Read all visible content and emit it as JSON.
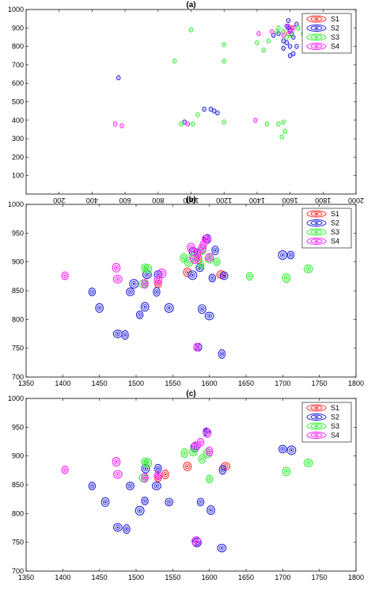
{
  "colors": {
    "S1": "#ff2a2a",
    "S2": "#2222dd",
    "S3": "#33ee33",
    "S4": "#ff22ff"
  },
  "chart_data": [
    {
      "type": "scatter",
      "title": "(a)",
      "xlim": [
        0,
        2000
      ],
      "ylim": [
        0,
        1000
      ],
      "x_ticks": [
        "200",
        "400",
        "600",
        "800",
        "1000",
        "1200",
        "1400",
        "1600",
        "1800",
        "2000"
      ],
      "y_ticks": [
        "100",
        "200",
        "300",
        "400",
        "500",
        "600",
        "700",
        "800",
        "900",
        "1000"
      ],
      "legend": [
        "S1",
        "S2",
        "S3",
        "S4"
      ],
      "legend_position": "top-right",
      "series": [
        {
          "name": "S1",
          "points": [
            [
              1610,
              900
            ],
            [
              1590,
              870
            ],
            [
              1560,
              880
            ]
          ]
        },
        {
          "name": "S2",
          "points": [
            [
              560,
              630
            ],
            [
              1080,
              460
            ],
            [
              1120,
              460
            ],
            [
              1140,
              450
            ],
            [
              1160,
              440
            ],
            [
              960,
              390
            ],
            [
              1590,
              900
            ],
            [
              1610,
              870
            ],
            [
              1620,
              850
            ],
            [
              1580,
              820
            ],
            [
              1600,
              800
            ],
            [
              1560,
              790
            ],
            [
              1620,
              760
            ],
            [
              1640,
              920
            ],
            [
              1590,
              940
            ],
            [
              1530,
              870
            ],
            [
              1560,
              830
            ],
            [
              1600,
              890
            ],
            [
              1640,
              800
            ],
            [
              1600,
              750
            ],
            [
              1580,
              910
            ],
            [
              1500,
              860
            ]
          ]
        },
        {
          "name": "S3",
          "points": [
            [
              1000,
              890
            ],
            [
              1200,
              810
            ],
            [
              1200,
              720
            ],
            [
              900,
              720
            ],
            [
              1200,
              390
            ],
            [
              1460,
              380
            ],
            [
              1530,
              380
            ],
            [
              1560,
              390
            ],
            [
              1570,
              340
            ],
            [
              1550,
              310
            ],
            [
              1040,
              430
            ],
            [
              940,
              380
            ],
            [
              1010,
              380
            ],
            [
              1530,
              900
            ],
            [
              1560,
              880
            ],
            [
              1610,
              860
            ],
            [
              1650,
              900
            ],
            [
              1520,
              880
            ],
            [
              1440,
              780
            ],
            [
              1470,
              830
            ],
            [
              1580,
              850
            ],
            [
              1680,
              870
            ],
            [
              1400,
              820
            ]
          ]
        },
        {
          "name": "S4",
          "points": [
            [
              540,
              380
            ],
            [
              580,
              370
            ],
            [
              980,
              380
            ],
            [
              1390,
              400
            ],
            [
              1410,
              870
            ],
            [
              1590,
              910
            ],
            [
              1490,
              880
            ],
            [
              1560,
              860
            ],
            [
              1620,
              900
            ],
            [
              1600,
              880
            ]
          ]
        }
      ]
    },
    {
      "type": "scatter",
      "title": "(b)",
      "xlim": [
        1350,
        1800
      ],
      "ylim": [
        700,
        1000
      ],
      "x_ticks": [
        "1350",
        "1400",
        "1450",
        "1500",
        "1550",
        "1600",
        "1650",
        "1700",
        "1750",
        "1800"
      ],
      "y_ticks": [
        "700",
        "750",
        "800",
        "850",
        "900",
        "950",
        "1000"
      ],
      "legend": [
        "S1",
        "S2",
        "S3",
        "S4"
      ],
      "legend_position": "top-right",
      "series": [
        {
          "name": "S1",
          "points": [
            [
              1530,
              862
            ],
            [
              1570,
              882
            ],
            [
              1616,
              878
            ],
            [
              1585,
              905
            ]
          ]
        },
        {
          "name": "S2",
          "points": [
            [
              1440,
              848
            ],
            [
              1450,
              820
            ],
            [
              1475,
              775
            ],
            [
              1485,
              773
            ],
            [
              1492,
              848
            ],
            [
              1497,
              862
            ],
            [
              1505,
              808
            ],
            [
              1512,
              822
            ],
            [
              1515,
              878
            ],
            [
              1528,
              848
            ],
            [
              1530,
              878
            ],
            [
              1545,
              820
            ],
            [
              1585,
              752
            ],
            [
              1590,
              818
            ],
            [
              1600,
              806
            ],
            [
              1617,
              740
            ],
            [
              1620,
              876
            ],
            [
              1700,
              912
            ],
            [
              1711,
              912
            ],
            [
              1597,
              940
            ],
            [
              1578,
              918
            ],
            [
              1608,
              920
            ],
            [
              1587,
              890
            ],
            [
              1577,
              877
            ],
            [
              1604,
              872
            ]
          ]
        },
        {
          "name": "S3",
          "points": [
            [
              1512,
              890
            ],
            [
              1516,
              888
            ],
            [
              1510,
              862
            ],
            [
              1565,
              907
            ],
            [
              1578,
              908
            ],
            [
              1600,
              906
            ],
            [
              1655,
              875
            ],
            [
              1705,
              872
            ],
            [
              1735,
              888
            ],
            [
              1588,
              895
            ],
            [
              1590,
              920
            ],
            [
              1572,
              900
            ],
            [
              1610,
              900
            ]
          ]
        },
        {
          "name": "S4",
          "points": [
            [
              1403,
              876
            ],
            [
              1473,
              890
            ],
            [
              1475,
              870
            ],
            [
              1512,
              862
            ],
            [
              1530,
              868
            ],
            [
              1535,
              880
            ],
            [
              1583,
              752
            ],
            [
              1590,
              923
            ],
            [
              1596,
              940
            ],
            [
              1584,
              915
            ],
            [
              1600,
              908
            ],
            [
              1580,
              905
            ],
            [
              1592,
              930
            ],
            [
              1575,
              925
            ]
          ]
        }
      ]
    },
    {
      "type": "scatter",
      "title": "(c)",
      "xlim": [
        1350,
        1800
      ],
      "ylim": [
        700,
        1000
      ],
      "x_ticks": [
        "1350",
        "1400",
        "1450",
        "1500",
        "1550",
        "1600",
        "1650",
        "1700",
        "1750",
        "1800"
      ],
      "y_ticks": [
        "700",
        "750",
        "800",
        "850",
        "900",
        "950",
        "1000"
      ],
      "legend": [
        "S1",
        "S2",
        "S3",
        "S4"
      ],
      "legend_position": "top-right",
      "series": [
        {
          "name": "S1",
          "points": [
            [
              1530,
              862
            ],
            [
              1570,
              882
            ],
            [
              1622,
              882
            ],
            [
              1540,
              868
            ]
          ]
        },
        {
          "name": "S2",
          "points": [
            [
              1440,
              848
            ],
            [
              1458,
              820
            ],
            [
              1475,
              776
            ],
            [
              1487,
              773
            ],
            [
              1492,
              848
            ],
            [
              1505,
              805
            ],
            [
              1512,
              822
            ],
            [
              1513,
              878
            ],
            [
              1528,
              848
            ],
            [
              1530,
              878
            ],
            [
              1545,
              820
            ],
            [
              1583,
              750
            ],
            [
              1588,
              820
            ],
            [
              1602,
              806
            ],
            [
              1617,
              740
            ],
            [
              1618,
              876
            ],
            [
              1700,
              912
            ],
            [
              1712,
              910
            ],
            [
              1596,
              942
            ],
            [
              1580,
              915
            ]
          ]
        },
        {
          "name": "S3",
          "points": [
            [
              1512,
              890
            ],
            [
              1516,
              888
            ],
            [
              1510,
              862
            ],
            [
              1566,
              905
            ],
            [
              1578,
              907
            ],
            [
              1598,
              905
            ],
            [
              1600,
              860
            ],
            [
              1705,
              873
            ],
            [
              1735,
              888
            ],
            [
              1590,
              895
            ]
          ]
        },
        {
          "name": "S4",
          "points": [
            [
              1403,
              876
            ],
            [
              1473,
              890
            ],
            [
              1475,
              868
            ],
            [
              1512,
              862
            ],
            [
              1530,
              866
            ],
            [
              1582,
              752
            ],
            [
              1588,
              924
            ],
            [
              1597,
              940
            ],
            [
              1582,
              918
            ],
            [
              1600,
              908
            ]
          ]
        }
      ]
    }
  ]
}
